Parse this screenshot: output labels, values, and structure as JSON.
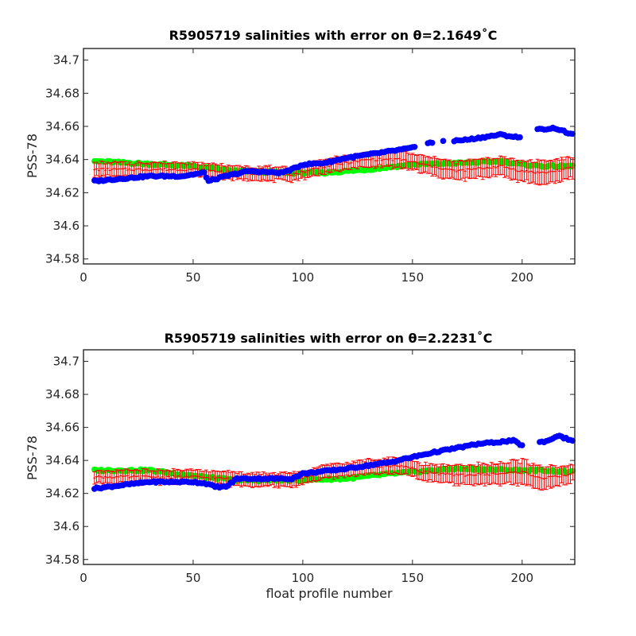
{
  "chart_data": [
    {
      "type": "scatter",
      "title": "R5905719 salinities with error on θ=2.1649˚C",
      "xlabel": "",
      "ylabel": "PSS-78",
      "xlim": [
        0,
        224
      ],
      "ylim": [
        34.577,
        34.707
      ],
      "xticks": [
        0,
        50,
        100,
        150,
        200
      ],
      "yticks": [
        34.58,
        34.6,
        34.62,
        34.64,
        34.66,
        34.68,
        34.7
      ],
      "ytick_labels": [
        "34.58",
        "34.6",
        "34.62",
        "34.64",
        "34.66",
        "34.68",
        "34.7"
      ],
      "grid": false,
      "colors": {
        "float": "#0000ff",
        "mapped": "#00ff00",
        "error": "#ff0000"
      },
      "series": [
        {
          "role": "float-salinity",
          "marker": "dot",
          "color": "#0000ff",
          "points": [
            [
              5,
              34.627
            ],
            [
              30,
              34.63
            ],
            [
              45,
              34.63
            ],
            [
              55,
              34.632
            ],
            [
              57,
              34.627
            ],
            [
              65,
              34.63
            ],
            [
              75,
              34.633
            ],
            [
              90,
              34.632
            ],
            [
              95,
              34.634
            ],
            [
              100,
              34.637
            ],
            [
              110,
              34.638
            ],
            [
              120,
              34.641
            ],
            [
              130,
              34.643
            ],
            [
              150,
              34.647
            ],
            [
              158,
              34.65
            ],
            [
              175,
              34.652
            ],
            [
              190,
              34.655
            ],
            [
              200,
              34.653
            ],
            [
              207,
              34.658
            ],
            [
              215,
              34.659
            ],
            [
              223,
              34.655
            ]
          ],
          "gaps": [
            [
              152,
              156
            ],
            [
              160,
              163
            ],
            [
              165,
              168
            ],
            [
              200,
              206
            ]
          ]
        },
        {
          "role": "mapped-salinity",
          "marker": "dot",
          "color": "#00ff00",
          "points": [
            [
              5,
              34.639
            ],
            [
              50,
              34.636
            ],
            [
              70,
              34.633
            ],
            [
              95,
              34.632
            ],
            [
              110,
              34.632
            ],
            [
              130,
              34.634
            ],
            [
              150,
              34.637
            ],
            [
              175,
              34.638
            ],
            [
              190,
              34.639
            ],
            [
              200,
              34.637
            ],
            [
              210,
              34.636
            ],
            [
              223,
              34.636
            ]
          ]
        },
        {
          "role": "calibrated-salinity-with-error",
          "marker": "errorbar",
          "color": "#ff0000",
          "points": [
            [
              5,
              34.634
            ],
            [
              50,
              34.634
            ],
            [
              70,
              34.632
            ],
            [
              95,
              34.631
            ],
            [
              110,
              34.636
            ],
            [
              130,
              34.64
            ],
            [
              145,
              34.64
            ],
            [
              155,
              34.637
            ],
            [
              170,
              34.633
            ],
            [
              190,
              34.636
            ],
            [
              200,
              34.633
            ],
            [
              210,
              34.632
            ],
            [
              223,
              34.635
            ]
          ],
          "err": [
            [
              5,
              0.004
            ],
            [
              120,
              0.004
            ],
            [
              155,
              0.005
            ],
            [
              200,
              0.006
            ],
            [
              210,
              0.007
            ],
            [
              223,
              0.006
            ]
          ]
        }
      ]
    },
    {
      "type": "scatter",
      "title": "R5905719 salinities with error on θ=2.2231˚C",
      "xlabel": "float profile number",
      "ylabel": "PSS-78",
      "xlim": [
        0,
        224
      ],
      "ylim": [
        34.577,
        34.707
      ],
      "xticks": [
        0,
        50,
        100,
        150,
        200
      ],
      "yticks": [
        34.58,
        34.6,
        34.62,
        34.64,
        34.66,
        34.68,
        34.7
      ],
      "ytick_labels": [
        "34.58",
        "34.6",
        "34.62",
        "34.64",
        "34.66",
        "34.68",
        "34.7"
      ],
      "grid": false,
      "colors": {
        "float": "#0000ff",
        "mapped": "#00ff00",
        "error": "#ff0000"
      },
      "series": [
        {
          "role": "float-salinity",
          "marker": "dot",
          "color": "#0000ff",
          "points": [
            [
              5,
              34.623
            ],
            [
              30,
              34.627
            ],
            [
              50,
              34.627
            ],
            [
              56,
              34.626
            ],
            [
              60,
              34.624
            ],
            [
              65,
              34.624
            ],
            [
              70,
              34.629
            ],
            [
              95,
              34.629
            ],
            [
              100,
              34.632
            ],
            [
              120,
              34.635
            ],
            [
              140,
              34.639
            ],
            [
              160,
              34.645
            ],
            [
              180,
              34.65
            ],
            [
              196,
              34.652
            ],
            [
              200,
              34.649
            ],
            [
              212,
              34.652
            ],
            [
              216,
              34.655
            ],
            [
              223,
              34.652
            ]
          ],
          "gaps": [
            [
              201,
              207
            ]
          ]
        },
        {
          "role": "mapped-salinity",
          "marker": "dot",
          "color": "#00ff00",
          "points": [
            [
              5,
              34.634
            ],
            [
              30,
              34.634
            ],
            [
              55,
              34.63
            ],
            [
              70,
              34.628
            ],
            [
              95,
              34.628
            ],
            [
              120,
              34.629
            ],
            [
              140,
              34.632
            ],
            [
              150,
              34.633
            ],
            [
              170,
              34.635
            ],
            [
              200,
              34.634
            ],
            [
              210,
              34.634
            ],
            [
              223,
              34.633
            ]
          ]
        },
        {
          "role": "calibrated-salinity-with-error",
          "marker": "errorbar",
          "color": "#ff0000",
          "points": [
            [
              5,
              34.63
            ],
            [
              50,
              34.63
            ],
            [
              65,
              34.629
            ],
            [
              95,
              34.628
            ],
            [
              110,
              34.633
            ],
            [
              130,
              34.636
            ],
            [
              145,
              34.637
            ],
            [
              155,
              34.633
            ],
            [
              170,
              34.631
            ],
            [
              190,
              34.632
            ],
            [
              200,
              34.633
            ],
            [
              210,
              34.629
            ],
            [
              223,
              34.632
            ]
          ],
          "err": [
            [
              5,
              0.004
            ],
            [
              120,
              0.004
            ],
            [
              155,
              0.005
            ],
            [
              200,
              0.007
            ],
            [
              210,
              0.007
            ],
            [
              223,
              0.005
            ]
          ]
        }
      ]
    }
  ]
}
